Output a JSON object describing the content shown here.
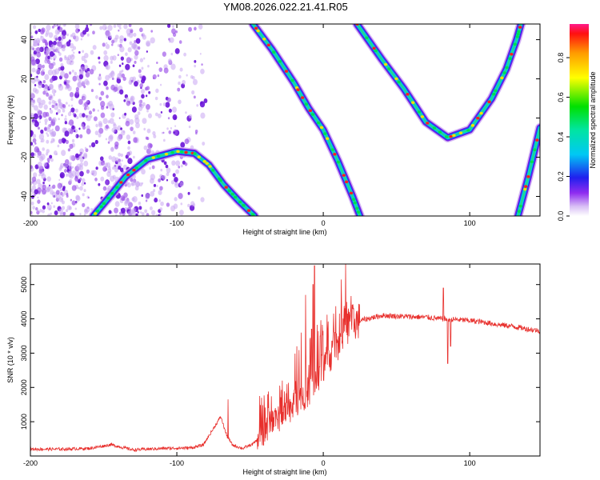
{
  "title": "YM08.2026.022.21.41.R05",
  "chart_data": [
    {
      "type": "heatmap",
      "xlabel": "Height of straight line (km)",
      "ylabel": "Frequency (Hz)",
      "xlim": [
        -200,
        148
      ],
      "ylim": [
        -50,
        48
      ],
      "xticks": [
        -200,
        -100,
        0,
        100
      ],
      "yticks": [
        -40,
        -20,
        0,
        20,
        40
      ],
      "colorbar": {
        "label": "Normalized spectral amplitude",
        "range": [
          0,
          0.97
        ],
        "ticks": [
          0.0,
          0.2,
          0.4,
          0.6,
          0.8
        ]
      },
      "ridges": [
        {
          "name": "parabola-left",
          "points": [
            [
              -157,
              -50
            ],
            [
              -148,
              -42
            ],
            [
              -135,
              -30
            ],
            [
              -120,
              -21
            ],
            [
              -100,
              -17
            ],
            [
              -88,
              -18
            ],
            [
              -78,
              -24
            ],
            [
              -68,
              -34
            ],
            [
              -58,
              -42
            ],
            [
              -47,
              -50
            ]
          ]
        },
        {
          "name": "diagonal",
          "points": [
            [
              -48,
              48
            ],
            [
              -35,
              35
            ],
            [
              -20,
              18
            ],
            [
              -10,
              5
            ],
            [
              0,
              -6
            ],
            [
              10,
              -22
            ],
            [
              20,
              -40
            ],
            [
              25,
              -50
            ]
          ]
        },
        {
          "name": "parabola-right",
          "points": [
            [
              23,
              48
            ],
            [
              40,
              30
            ],
            [
              55,
              15
            ],
            [
              70,
              -2
            ],
            [
              85,
              -10
            ],
            [
              100,
              -6
            ],
            [
              115,
              10
            ],
            [
              125,
              25
            ],
            [
              132,
              40
            ],
            [
              135,
              48
            ]
          ]
        },
        {
          "name": "edge-line",
          "points": [
            [
              133,
              -50
            ],
            [
              140,
              -30
            ],
            [
              148,
              -5
            ]
          ]
        }
      ]
    },
    {
      "type": "line",
      "xlabel": "Height of straight line (km)",
      "ylabel": "SNR (10 * v/v)",
      "xlim": [
        -200,
        148
      ],
      "ylim": [
        0,
        5600
      ],
      "xticks": [
        -200,
        -100,
        0,
        100
      ],
      "yticks": [
        1000,
        2000,
        3000,
        4000,
        5000
      ],
      "color": "#e8302d",
      "series": [
        {
          "points": [
            [
              -200,
              200
            ],
            [
              -180,
              200
            ],
            [
              -160,
              220
            ],
            [
              -145,
              330
            ],
            [
              -130,
              180
            ],
            [
              -110,
              220
            ],
            [
              -90,
              240
            ],
            [
              -82,
              320
            ],
            [
              -75,
              800
            ],
            [
              -70,
              1150
            ],
            [
              -66,
              600
            ],
            [
              -62,
              320
            ],
            [
              -55,
              220
            ],
            [
              -48,
              350
            ],
            [
              -40,
              700
            ],
            [
              -30,
              1100
            ],
            [
              -20,
              1500
            ],
            [
              -10,
              1900
            ],
            [
              -5,
              2200
            ],
            [
              0,
              2600
            ],
            [
              5,
              2900
            ],
            [
              10,
              3300
            ],
            [
              15,
              3700
            ],
            [
              20,
              3900
            ],
            [
              25,
              3950
            ],
            [
              30,
              4000
            ],
            [
              40,
              4100
            ],
            [
              50,
              4080
            ],
            [
              60,
              4060
            ],
            [
              70,
              4050
            ],
            [
              80,
              4000
            ],
            [
              90,
              3980
            ],
            [
              100,
              3950
            ],
            [
              110,
              3900
            ],
            [
              120,
              3830
            ],
            [
              130,
              3780
            ],
            [
              140,
              3700
            ],
            [
              148,
              3650
            ]
          ]
        }
      ],
      "spikes": [
        [
          -65,
          1650
        ],
        [
          -38,
          1800
        ],
        [
          -28,
          2200
        ],
        [
          -18,
          3200
        ],
        [
          -15,
          3600
        ],
        [
          -12,
          4700
        ],
        [
          -8,
          3700
        ],
        [
          -7,
          5000
        ],
        [
          -6,
          5550
        ],
        [
          -2,
          3500
        ],
        [
          3,
          3700
        ],
        [
          82,
          4900
        ],
        [
          85,
          2700
        ],
        [
          87,
          3200
        ]
      ]
    }
  ]
}
